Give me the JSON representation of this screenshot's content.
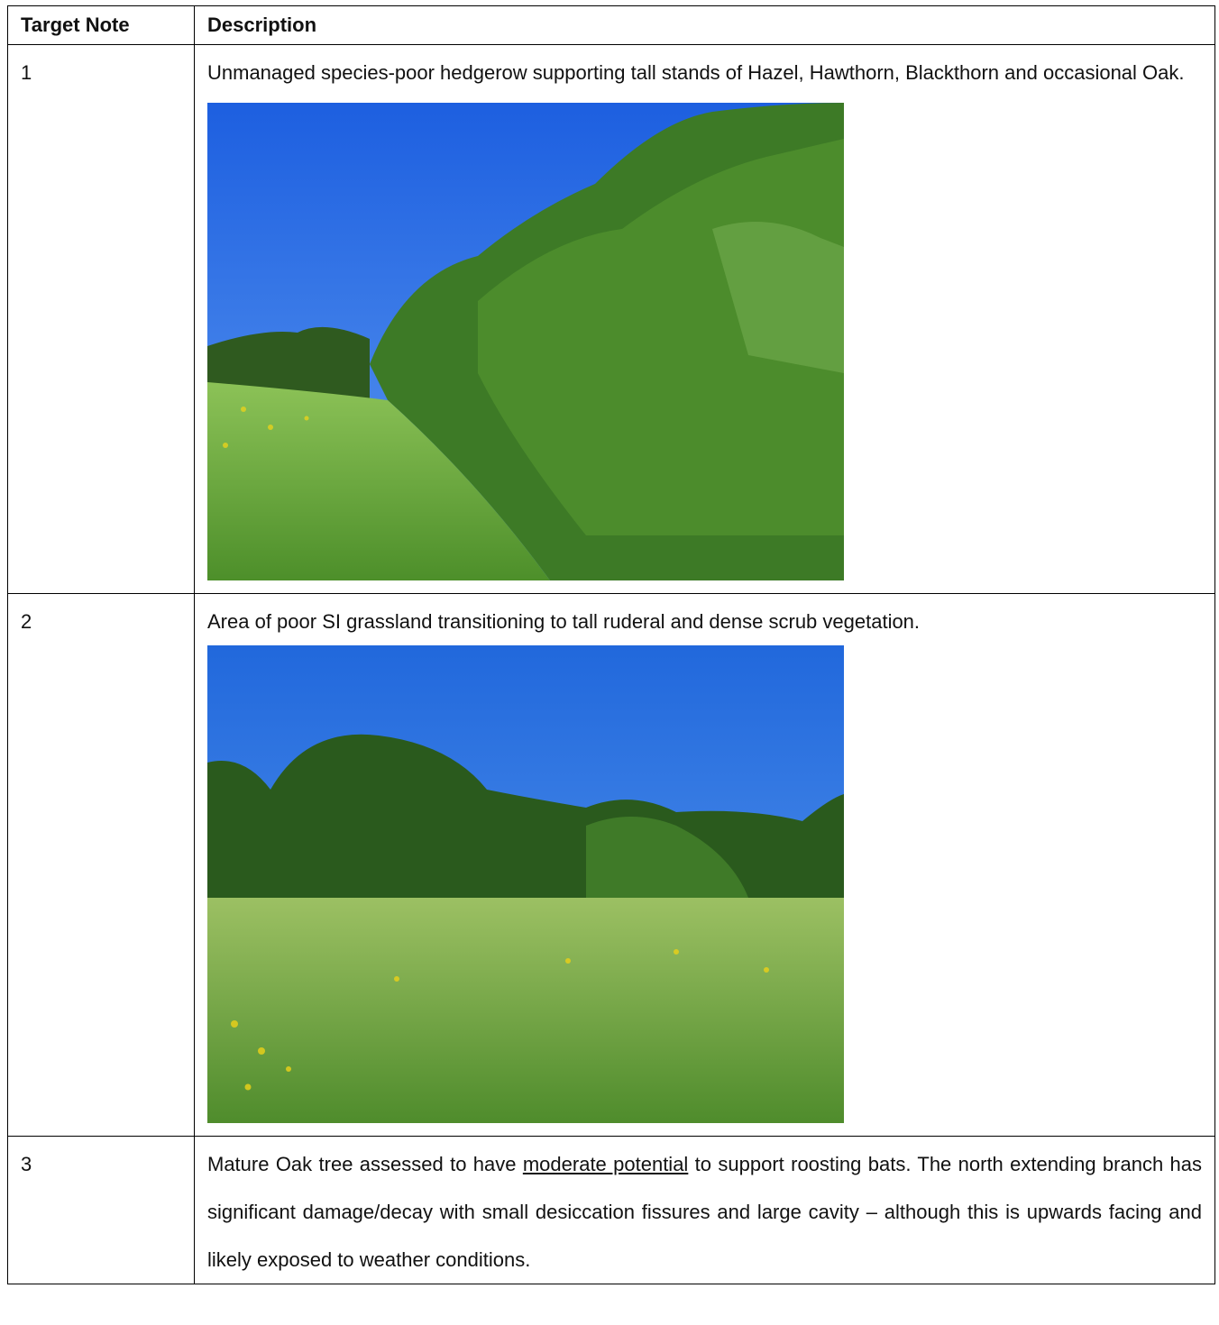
{
  "table": {
    "header": [
      "Target Note",
      "Description"
    ],
    "rows": [
      {
        "note": "1",
        "description": "Unmanaged species-poor hedgerow supporting tall stands of Hazel, Hawthorn, Blackthorn and occasional Oak."
      },
      {
        "note": "2",
        "description": "Area of poor SI grassland transitioning to tall ruderal and dense scrub vegetation."
      },
      {
        "note": "3",
        "description": {
          "before": "Mature Oak tree assessed to have ",
          "underlined": "moderate potential",
          "after": " to support roosting bats. The north extending branch has significant damage/decay with small desiccation fissures and large cavity – although this is upwards facing and likely exposed to weather conditions."
        }
      }
    ]
  }
}
